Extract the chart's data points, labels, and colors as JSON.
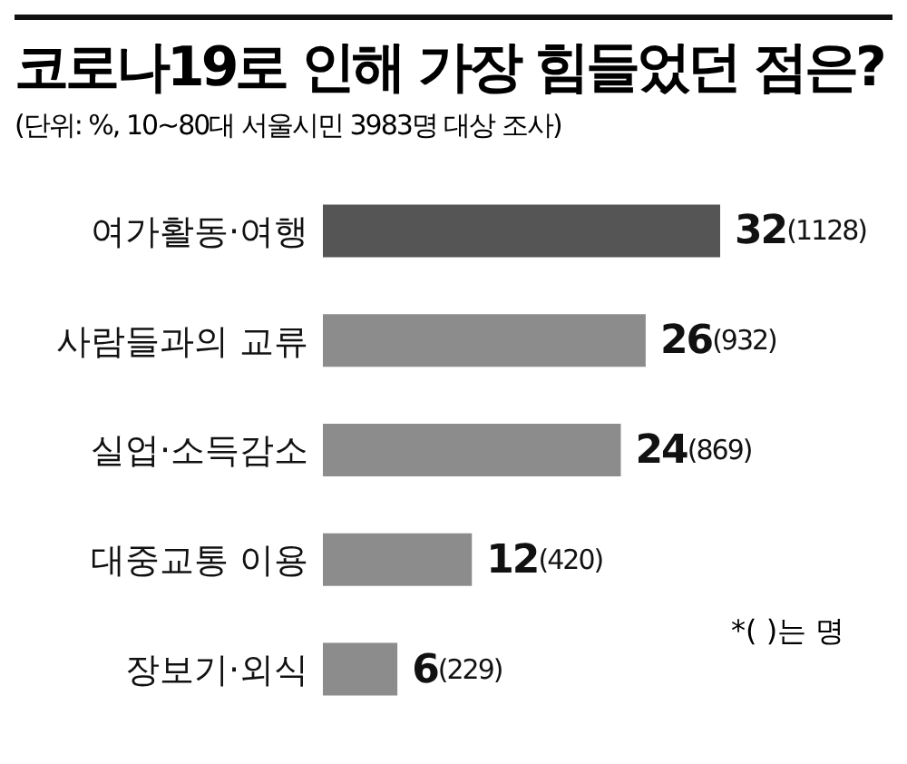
{
  "chart_data": {
    "type": "bar",
    "orientation": "horizontal",
    "title": "코로나19로 인해 가장 힘들었던 점은?",
    "subtitle": "(단위: %, 10~80대 서울시민 3983명 대상 조사)",
    "categories": [
      "여가활동·여행",
      "사람들과의 교류",
      "실업·소득감소",
      "대중교통 이용",
      "장보기·외식"
    ],
    "values": [
      32,
      26,
      24,
      12,
      6
    ],
    "colors": [
      "#555555",
      "#8c8c8c",
      "#8c8c8c",
      "#8c8c8c",
      "#8c8c8c"
    ],
    "value_labels": [
      "32(1128)",
      "26(932)",
      "24(869)",
      "12(420)",
      "6(229)"
    ],
    "annotations": [
      "*( )는 명"
    ],
    "grid": false,
    "legend": false
  }
}
